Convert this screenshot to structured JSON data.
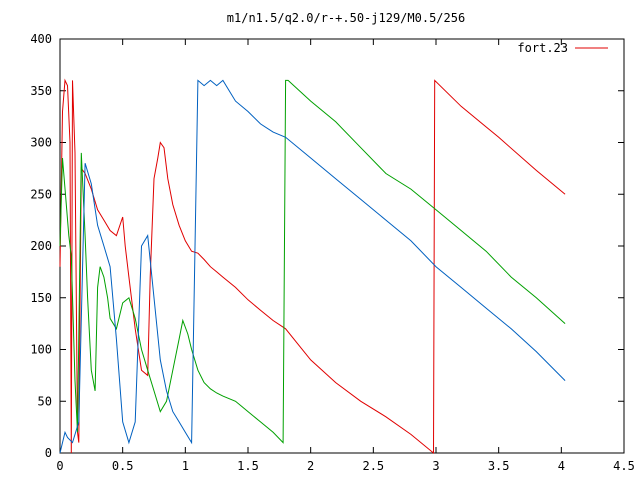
{
  "chart_data": {
    "type": "line",
    "title": "m1/n1.5/q2.0/r-+.50-j129/M0.5/256",
    "xlabel": "",
    "ylabel": "",
    "xlim": [
      0,
      4.5
    ],
    "ylim": [
      0,
      400
    ],
    "xticks": [
      "0",
      "0.5",
      "1",
      "1.5",
      "2",
      "2.5",
      "3",
      "3.5",
      "4",
      "4.5"
    ],
    "yticks": [
      "0",
      "50",
      "100",
      "150",
      "200",
      "250",
      "300",
      "350",
      "400"
    ],
    "grid": false,
    "legend_position": "top-right",
    "legend": [
      "fort.23"
    ],
    "series": [
      {
        "name": "fort.23",
        "color": "#e00000",
        "points": [
          [
            0.0,
            180
          ],
          [
            0.02,
            330
          ],
          [
            0.04,
            360
          ],
          [
            0.06,
            355
          ],
          [
            0.08,
            300
          ],
          [
            0.09,
            0
          ],
          [
            0.1,
            360
          ],
          [
            0.12,
            290
          ],
          [
            0.14,
            20
          ],
          [
            0.15,
            10
          ],
          [
            0.17,
            275
          ],
          [
            0.2,
            270
          ],
          [
            0.25,
            255
          ],
          [
            0.3,
            235
          ],
          [
            0.35,
            225
          ],
          [
            0.4,
            215
          ],
          [
            0.45,
            210
          ],
          [
            0.5,
            228
          ],
          [
            0.52,
            200
          ],
          [
            0.55,
            170
          ],
          [
            0.6,
            120
          ],
          [
            0.65,
            80
          ],
          [
            0.7,
            75
          ],
          [
            0.72,
            170
          ],
          [
            0.75,
            265
          ],
          [
            0.78,
            285
          ],
          [
            0.8,
            300
          ],
          [
            0.83,
            295
          ],
          [
            0.86,
            265
          ],
          [
            0.9,
            240
          ],
          [
            0.95,
            220
          ],
          [
            1.0,
            205
          ],
          [
            1.05,
            195
          ],
          [
            1.1,
            193
          ],
          [
            1.15,
            187
          ],
          [
            1.2,
            180
          ],
          [
            1.25,
            175
          ],
          [
            1.3,
            170
          ],
          [
            1.4,
            160
          ],
          [
            1.5,
            148
          ],
          [
            1.6,
            138
          ],
          [
            1.7,
            128
          ],
          [
            1.8,
            120
          ],
          [
            1.9,
            105
          ],
          [
            2.0,
            90
          ],
          [
            2.2,
            68
          ],
          [
            2.4,
            50
          ],
          [
            2.6,
            35
          ],
          [
            2.8,
            18
          ],
          [
            2.98,
            0
          ],
          [
            2.99,
            360
          ],
          [
            3.2,
            335
          ],
          [
            3.5,
            305
          ],
          [
            3.8,
            273
          ],
          [
            4.03,
            250
          ]
        ]
      },
      {
        "name": "",
        "color": "#00a000",
        "points": [
          [
            0.0,
            200
          ],
          [
            0.02,
            285
          ],
          [
            0.05,
            240
          ],
          [
            0.07,
            210
          ],
          [
            0.09,
            190
          ],
          [
            0.12,
            70
          ],
          [
            0.14,
            20
          ],
          [
            0.17,
            290
          ],
          [
            0.2,
            210
          ],
          [
            0.22,
            150
          ],
          [
            0.25,
            80
          ],
          [
            0.28,
            60
          ],
          [
            0.3,
            160
          ],
          [
            0.32,
            180
          ],
          [
            0.35,
            170
          ],
          [
            0.38,
            150
          ],
          [
            0.4,
            130
          ],
          [
            0.45,
            120
          ],
          [
            0.5,
            145
          ],
          [
            0.55,
            150
          ],
          [
            0.6,
            130
          ],
          [
            0.65,
            100
          ],
          [
            0.7,
            80
          ],
          [
            0.75,
            60
          ],
          [
            0.8,
            40
          ],
          [
            0.85,
            50
          ],
          [
            0.9,
            80
          ],
          [
            0.95,
            110
          ],
          [
            0.98,
            128
          ],
          [
            1.02,
            115
          ],
          [
            1.05,
            100
          ],
          [
            1.1,
            80
          ],
          [
            1.15,
            68
          ],
          [
            1.2,
            62
          ],
          [
            1.25,
            58
          ],
          [
            1.3,
            55
          ],
          [
            1.4,
            50
          ],
          [
            1.45,
            45
          ],
          [
            1.5,
            40
          ],
          [
            1.6,
            30
          ],
          [
            1.7,
            20
          ],
          [
            1.78,
            10
          ],
          [
            1.8,
            360
          ],
          [
            1.82,
            360
          ],
          [
            2.0,
            340
          ],
          [
            2.2,
            320
          ],
          [
            2.4,
            295
          ],
          [
            2.6,
            270
          ],
          [
            2.8,
            255
          ],
          [
            3.0,
            235
          ],
          [
            3.2,
            215
          ],
          [
            3.4,
            195
          ],
          [
            3.6,
            170
          ],
          [
            3.8,
            150
          ],
          [
            4.03,
            125
          ]
        ]
      },
      {
        "name": "",
        "color": "#0060c0",
        "points": [
          [
            0.0,
            0
          ],
          [
            0.02,
            10
          ],
          [
            0.04,
            20
          ],
          [
            0.06,
            15
          ],
          [
            0.1,
            10
          ],
          [
            0.15,
            30
          ],
          [
            0.2,
            280
          ],
          [
            0.25,
            260
          ],
          [
            0.3,
            220
          ],
          [
            0.35,
            200
          ],
          [
            0.4,
            180
          ],
          [
            0.45,
            110
          ],
          [
            0.5,
            30
          ],
          [
            0.55,
            10
          ],
          [
            0.6,
            30
          ],
          [
            0.65,
            200
          ],
          [
            0.7,
            210
          ],
          [
            0.75,
            150
          ],
          [
            0.8,
            90
          ],
          [
            0.85,
            60
          ],
          [
            0.9,
            40
          ],
          [
            0.95,
            30
          ],
          [
            1.0,
            20
          ],
          [
            1.05,
            10
          ],
          [
            1.1,
            360
          ],
          [
            1.15,
            355
          ],
          [
            1.2,
            360
          ],
          [
            1.25,
            355
          ],
          [
            1.3,
            360
          ],
          [
            1.35,
            350
          ],
          [
            1.4,
            340
          ],
          [
            1.5,
            330
          ],
          [
            1.6,
            318
          ],
          [
            1.7,
            310
          ],
          [
            1.8,
            305
          ],
          [
            2.0,
            285
          ],
          [
            2.2,
            265
          ],
          [
            2.4,
            245
          ],
          [
            2.6,
            225
          ],
          [
            2.8,
            205
          ],
          [
            3.0,
            180
          ],
          [
            3.2,
            160
          ],
          [
            3.4,
            140
          ],
          [
            3.6,
            120
          ],
          [
            3.8,
            98
          ],
          [
            4.03,
            70
          ]
        ]
      }
    ]
  }
}
